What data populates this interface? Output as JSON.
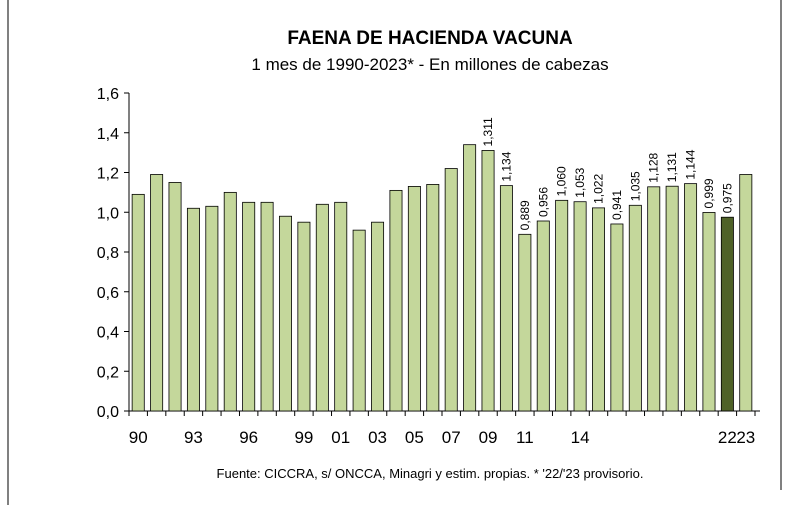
{
  "chart_data": {
    "type": "bar",
    "title": "FAENA DE HACIENDA VACUNA",
    "subtitle": "1 mes de 1990-2023* - En millones de cabezas",
    "source": "Fuente: CICCRA, s/ ONCCA, Minagri y estim. propias. * '22/'23 provisorio.",
    "categories": [
      "90",
      null,
      null,
      "93",
      null,
      null,
      "96",
      null,
      null,
      "99",
      null,
      "01",
      null,
      "03",
      null,
      "05",
      null,
      "07",
      null,
      "09",
      null,
      "11",
      null,
      null,
      "14",
      null,
      null,
      null,
      null,
      null,
      null,
      null,
      "22",
      "23"
    ],
    "values": [
      1.09,
      1.19,
      1.15,
      1.02,
      1.03,
      1.1,
      1.05,
      1.05,
      0.98,
      0.95,
      1.04,
      1.05,
      0.91,
      0.95,
      1.11,
      1.13,
      1.14,
      1.22,
      1.34,
      1.311,
      1.134,
      0.889,
      0.956,
      1.06,
      1.053,
      1.022,
      0.941,
      1.035,
      1.128,
      1.131,
      1.144,
      0.999,
      0.975,
      1.19
    ],
    "value_labels": [
      null,
      null,
      null,
      null,
      null,
      null,
      null,
      null,
      null,
      null,
      null,
      null,
      null,
      null,
      null,
      null,
      null,
      null,
      null,
      "1,311",
      "1,134",
      "0,889",
      "0,956",
      "1,060",
      "1,053",
      "1,022",
      "0,941",
      "1,035",
      "1,128",
      "1,131",
      "1,144",
      "0,999",
      "0,975",
      null
    ],
    "colors": [
      "#c4d79b",
      "#c4d79b",
      "#c4d79b",
      "#c4d79b",
      "#c4d79b",
      "#c4d79b",
      "#c4d79b",
      "#c4d79b",
      "#c4d79b",
      "#c4d79b",
      "#c4d79b",
      "#c4d79b",
      "#c4d79b",
      "#c4d79b",
      "#c4d79b",
      "#c4d79b",
      "#c4d79b",
      "#c4d79b",
      "#c4d79b",
      "#c4d79b",
      "#c4d79b",
      "#c4d79b",
      "#c4d79b",
      "#c4d79b",
      "#c4d79b",
      "#c4d79b",
      "#c4d79b",
      "#c4d79b",
      "#c4d79b",
      "#c4d79b",
      "#c4d79b",
      "#c4d79b",
      "#4f6228",
      "#c4d79b"
    ],
    "ylim": [
      0,
      1.6
    ],
    "yticks": [
      {
        "value": 0,
        "label": "0,0"
      },
      {
        "value": 0.2,
        "label": "0,2"
      },
      {
        "value": 0.4,
        "label": "0,4"
      },
      {
        "value": 0.6,
        "label": "0,6"
      },
      {
        "value": 0.8,
        "label": "0,8"
      },
      {
        "value": 1.0,
        "label": "1,0"
      },
      {
        "value": 1.2,
        "label": "1,2"
      },
      {
        "value": 1.4,
        "label": "1,4"
      },
      {
        "value": 1.6,
        "label": "1,6"
      }
    ]
  }
}
